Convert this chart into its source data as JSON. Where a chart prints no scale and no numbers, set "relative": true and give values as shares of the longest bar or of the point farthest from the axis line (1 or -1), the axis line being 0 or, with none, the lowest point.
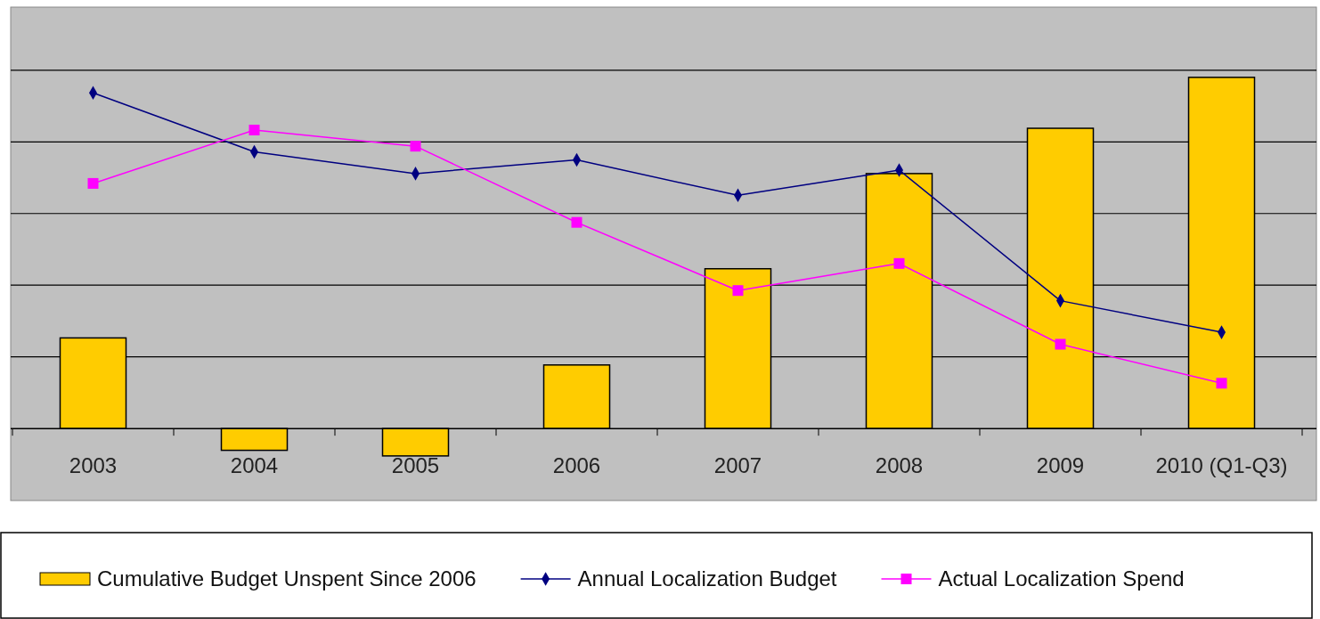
{
  "chart_data": {
    "type": "bar",
    "relative": true,
    "categories": [
      "2003",
      "2004",
      "2005",
      "2006",
      "2007",
      "2008",
      "2009",
      "2010 (Q1-Q3)"
    ],
    "series": [
      {
        "name": "Cumulative Budget Unspent Since 2006",
        "color": "#ffcc00",
        "values": [
          0.258,
          -0.062,
          -0.078,
          0.181,
          0.455,
          0.726,
          0.855,
          1
        ]
      },
      {
        "name": "Annual Localization Budget",
        "type": "line",
        "color": "#000080",
        "marker": "diamond",
        "values": [
          0.956,
          0.788,
          0.726,
          0.765,
          0.664,
          0.736,
          0.364,
          0.274
        ]
      },
      {
        "name": "Actual Localization Spend",
        "type": "line",
        "color": "#ff00ff",
        "marker": "square",
        "values": [
          0.698,
          0.85,
          0.804,
          0.587,
          0.393,
          0.47,
          0.24,
          0.129
        ]
      }
    ],
    "grid": "y",
    "legend": "bottom"
  }
}
